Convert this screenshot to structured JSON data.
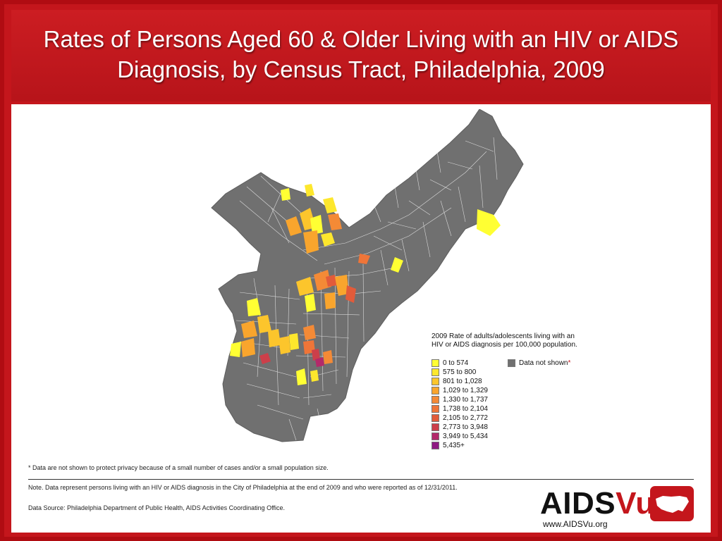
{
  "title": "Rates of Persons Aged 60 & Older Living with an HIV or AIDS Diagnosis, by Census Tract, Philadelphia, 2009",
  "legend": {
    "title_line1": "2009 Rate of adults/adolescents living with an",
    "title_line2": "HIV or AIDS diagnosis per 100,000 population.",
    "items": [
      {
        "label": "0 to 574",
        "color": "#ffff33"
      },
      {
        "label": "575 to 800",
        "color": "#fde72d"
      },
      {
        "label": "801 to 1,028",
        "color": "#fcc52c"
      },
      {
        "label": "1,029 to 1,329",
        "color": "#f9a52d"
      },
      {
        "label": "1,330 to 1,737",
        "color": "#f48a36"
      },
      {
        "label": "1,738 to 2,104",
        "color": "#ef7538"
      },
      {
        "label": "2,105 to 2,772",
        "color": "#e25b3a"
      },
      {
        "label": "2,773 to 3,948",
        "color": "#cc3f4a"
      },
      {
        "label": "3,949 to 5,434",
        "color": "#b3296a"
      },
      {
        "label": "5,435+",
        "color": "#8e1a82"
      }
    ],
    "not_shown_label": "Data not shown",
    "not_shown_color": "#707070",
    "asterisk": "*"
  },
  "footnote": "* Data are not shown to protect privacy because of a small number of cases and/or a small population size.",
  "note": "Note. Data represent persons living with an HIV or AIDS diagnosis in the City of Philadelphia at the end of 2009 and who were reported as of 12/31/2011.",
  "source": "Data Source: Philadelphia Department of Public Health, AIDS Activities Coordinating Office.",
  "brand": {
    "part1": "AIDS",
    "part2": "Vu",
    "url": "www.AIDSVu.org"
  },
  "colors": {
    "frame": "#c4161c",
    "map_gray": "#707070",
    "tract_lines": "#ffffff"
  }
}
